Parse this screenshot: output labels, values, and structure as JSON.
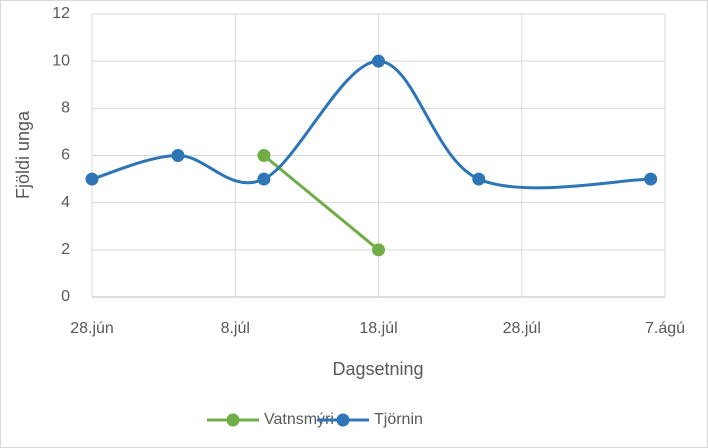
{
  "chart_data": {
    "type": "line",
    "x_label": "Dagsetning",
    "y_label": "Fjöldi unga",
    "xlim": [
      0,
      40
    ],
    "xticks": [
      {
        "value": 0,
        "label": "28.jún"
      },
      {
        "value": 10,
        "label": "8.júl"
      },
      {
        "value": 20,
        "label": "18.júl"
      },
      {
        "value": 30,
        "label": "28.júl"
      },
      {
        "value": 40,
        "label": "7.ágú"
      }
    ],
    "ylim": [
      0,
      12
    ],
    "yticks": [
      0,
      2,
      4,
      6,
      8,
      10,
      12
    ],
    "grid": true,
    "legend": "bottom",
    "series": [
      {
        "name": "Vatnsmýri",
        "color": "#70ad47",
        "smooth": false,
        "x": [
          12,
          20
        ],
        "values": [
          6,
          2
        ]
      },
      {
        "name": "Tjörnin",
        "color": "#2e75b6",
        "smooth": true,
        "x": [
          0,
          6,
          12,
          20,
          27,
          39
        ],
        "values": [
          5,
          6,
          5,
          10,
          5,
          5
        ]
      }
    ]
  }
}
